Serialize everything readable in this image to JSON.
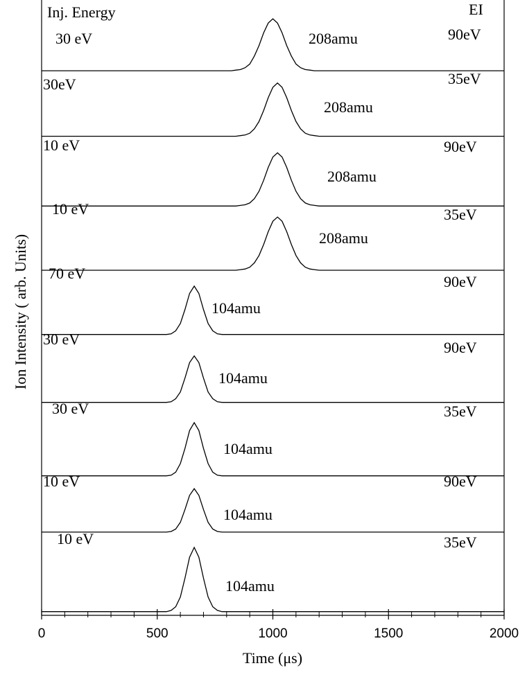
{
  "chart_data": {
    "type": "line",
    "x_label": "Time (μs)",
    "y_label": "Ion Intensity ( arb. Units)",
    "left_header": "Inj. Energy",
    "right_header": "EI",
    "xlim": [
      0,
      2000
    ],
    "ylim": [
      0,
      100
    ],
    "xticks": [
      0,
      500,
      1000,
      1500,
      2000
    ],
    "xminorticks": [
      100,
      200,
      300,
      400,
      600,
      700,
      800,
      900,
      1100,
      1200,
      1300,
      1400,
      1600,
      1700,
      1800,
      1900
    ],
    "color": "#000000",
    "x": [
      0,
      400,
      500,
      520,
      540,
      560,
      580,
      600,
      620,
      640,
      660,
      680,
      700,
      720,
      740,
      760,
      780,
      800,
      820,
      840,
      860,
      880,
      900,
      920,
      940,
      960,
      980,
      1000,
      1020,
      1040,
      1060,
      1080,
      1100,
      1120,
      1140,
      1160,
      1180,
      1200,
      1220,
      1240,
      1260,
      1280,
      1300,
      2000
    ],
    "series": [
      {
        "inj": "30 eV",
        "mass": "208amu",
        "ei": "90eV",
        "values": [
          89,
          89,
          89,
          89,
          89,
          89,
          89,
          89,
          89,
          89,
          89,
          89,
          89,
          89,
          89,
          89,
          89,
          89,
          89.0,
          89.1,
          89.2,
          89.5,
          90.1,
          91.4,
          93.1,
          95.2,
          96.8,
          97.5,
          96.8,
          95.2,
          93.1,
          91.4,
          90.1,
          89.5,
          89.2,
          89.1,
          89.0,
          89,
          89,
          89,
          89,
          89,
          89,
          89
        ]
      },
      {
        "inj": "30eV",
        "mass": "208amu",
        "ei": "35eV",
        "values": [
          78.3,
          78.3,
          78.3,
          78.3,
          78.3,
          78.3,
          78.3,
          78.3,
          78.3,
          78.3,
          78.3,
          78.3,
          78.3,
          78.3,
          78.3,
          78.3,
          78.3,
          78.3,
          78.3,
          78.3,
          78.4,
          78.5,
          78.8,
          79.5,
          80.7,
          82.5,
          84.6,
          86.3,
          87.0,
          86.3,
          84.6,
          82.5,
          80.7,
          79.5,
          78.8,
          78.5,
          78.4,
          78.3,
          78.3,
          78.3,
          78.3,
          78.3,
          78.3,
          78.3
        ]
      },
      {
        "inj": "10 eV",
        "mass": "208amu",
        "ei": "90eV",
        "values": [
          66.9,
          66.9,
          66.9,
          66.9,
          66.9,
          66.9,
          66.9,
          66.9,
          66.9,
          66.9,
          66.9,
          66.9,
          66.9,
          66.9,
          66.9,
          66.9,
          66.9,
          66.9,
          66.9,
          66.9,
          67.0,
          67.1,
          67.4,
          68.1,
          69.3,
          71.1,
          73.2,
          74.9,
          75.6,
          74.9,
          73.2,
          71.1,
          69.3,
          68.1,
          67.4,
          67.1,
          67.0,
          66.9,
          66.9,
          66.9,
          66.9,
          66.9,
          66.9,
          66.9
        ]
      },
      {
        "inj": "10 eV",
        "mass": "208amu",
        "ei": "35eV",
        "values": [
          56.4,
          56.4,
          56.4,
          56.4,
          56.4,
          56.4,
          56.4,
          56.4,
          56.4,
          56.4,
          56.4,
          56.4,
          56.4,
          56.4,
          56.4,
          56.4,
          56.4,
          56.4,
          56.4,
          56.4,
          56.5,
          56.6,
          56.9,
          57.6,
          58.8,
          60.6,
          62.7,
          64.4,
          65.1,
          64.4,
          62.7,
          60.6,
          58.8,
          57.6,
          56.9,
          56.6,
          56.5,
          56.4,
          56.4,
          56.4,
          56.4,
          56.4,
          56.4,
          56.4
        ]
      },
      {
        "inj": "70 eV",
        "mass": "104amu",
        "ei": "90eV",
        "values": [
          45.9,
          45.9,
          45.9,
          45.9,
          45.9,
          46.0,
          46.5,
          47.7,
          50.0,
          52.6,
          53.8,
          52.6,
          50.0,
          47.7,
          46.5,
          46.0,
          45.9,
          45.9,
          45.9,
          45.9,
          45.9,
          45.9,
          45.9,
          45.9,
          45.9,
          45.9,
          45.9,
          45.9,
          45.9,
          45.9,
          45.9,
          45.9,
          45.9,
          45.9,
          45.9,
          45.9,
          45.9,
          45.9,
          45.9,
          45.9,
          45.9,
          45.9,
          45.9,
          45.9
        ]
      },
      {
        "inj": "30 eV",
        "mass": "104amu",
        "ei": "90eV",
        "values": [
          34.8,
          34.8,
          34.8,
          34.8,
          34.8,
          34.9,
          35.4,
          36.5,
          38.8,
          41.3,
          42.4,
          41.3,
          38.8,
          36.5,
          35.4,
          34.9,
          34.8,
          34.8,
          34.8,
          34.8,
          34.8,
          34.8,
          34.8,
          34.8,
          34.8,
          34.8,
          34.8,
          34.8,
          34.8,
          34.8,
          34.8,
          34.8,
          34.8,
          34.8,
          34.8,
          34.8,
          34.8,
          34.8,
          34.8,
          34.8,
          34.8,
          34.8,
          34.8,
          34.8
        ]
      },
      {
        "inj": "30 eV",
        "mass": "104amu",
        "ei": "35eV",
        "values": [
          22.8,
          22.8,
          22.8,
          22.8,
          22.8,
          22.9,
          23.4,
          24.8,
          27.3,
          30.2,
          31.5,
          30.2,
          27.3,
          24.8,
          23.4,
          22.9,
          22.8,
          22.8,
          22.8,
          22.8,
          22.8,
          22.8,
          22.8,
          22.8,
          22.8,
          22.8,
          22.8,
          22.8,
          22.8,
          22.8,
          22.8,
          22.8,
          22.8,
          22.8,
          22.8,
          22.8,
          22.8,
          22.8,
          22.8,
          22.8,
          22.8,
          22.8,
          22.8,
          22.8
        ]
      },
      {
        "inj": "10 eV",
        "mass": "104amu",
        "ei": "90eV",
        "values": [
          13.6,
          13.6,
          13.6,
          13.6,
          13.6,
          13.7,
          14.1,
          15.2,
          17.3,
          19.6,
          20.7,
          19.6,
          17.3,
          15.2,
          14.1,
          13.7,
          13.6,
          13.6,
          13.6,
          13.6,
          13.6,
          13.6,
          13.6,
          13.6,
          13.6,
          13.6,
          13.6,
          13.6,
          13.6,
          13.6,
          13.6,
          13.6,
          13.6,
          13.6,
          13.6,
          13.6,
          13.6,
          13.6,
          13.6,
          13.6,
          13.6,
          13.6,
          13.6,
          13.6
        ]
      },
      {
        "inj": "10 eV",
        "mass": "104amu",
        "ei": "35eV",
        "values": [
          0.6,
          0.6,
          0.6,
          0.6,
          0.6,
          0.8,
          1.4,
          3.0,
          6.1,
          9.5,
          11.1,
          9.5,
          6.1,
          3.0,
          1.4,
          0.8,
          0.6,
          0.6,
          0.6,
          0.6,
          0.6,
          0.6,
          0.6,
          0.6,
          0.6,
          0.6,
          0.6,
          0.6,
          0.6,
          0.6,
          0.6,
          0.6,
          0.6,
          0.6,
          0.6,
          0.6,
          0.6,
          0.6,
          0.6,
          0.6,
          0.6,
          0.6,
          0.6,
          0.6
        ]
      }
    ]
  }
}
